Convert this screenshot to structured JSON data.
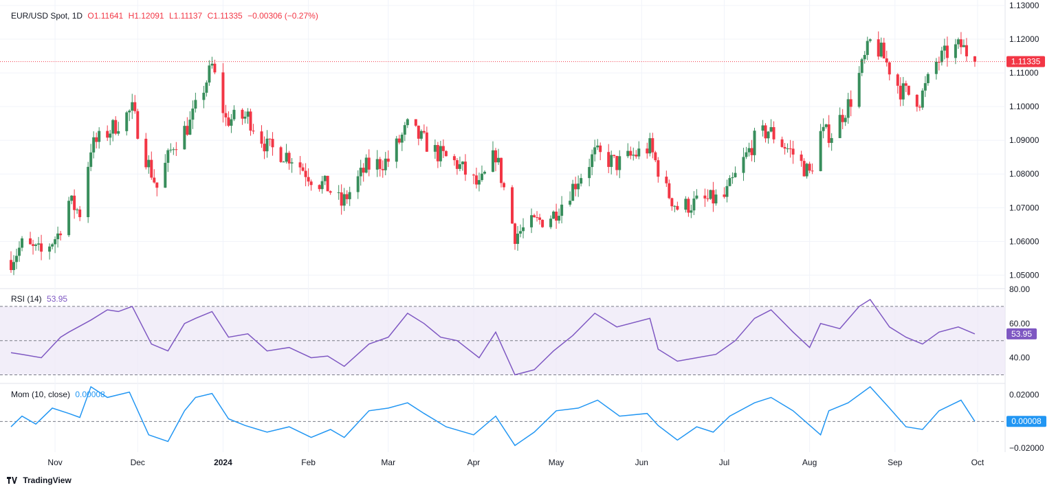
{
  "legend": {
    "symbol": "EUR/USD Spot, 1D",
    "open": "O1.11641",
    "high": "H1.12091",
    "low": "L1.11137",
    "close": "C1.11335",
    "change": "−0.00306 (−0.27%)"
  },
  "rsi_legend": {
    "label": "RSI (14)",
    "value": "53.95"
  },
  "mom_legend": {
    "label": "Mom (10, close)",
    "value": "0.00008"
  },
  "brand": "TradingView",
  "colors": {
    "up": "#26a69a",
    "up_candle": "#388e5c",
    "down": "#f23645",
    "rsi": "#7e57c2",
    "rsi_band": "#ede7f6",
    "mom": "#2196f3"
  },
  "chart_data": [
    {
      "type": "candlestick",
      "title": "EUR/USD Spot, 1D",
      "ylim": [
        1.046,
        1.13
      ],
      "y_ticks": [
        "1.13000",
        "1.12000",
        "1.11000",
        "1.10000",
        "1.09000",
        "1.08000",
        "1.07000",
        "1.06000",
        "1.05000"
      ],
      "last_price_label": "1.11335",
      "last_price": 1.11335,
      "x_ticks": [
        "Nov",
        "Dec",
        "2024",
        "Feb",
        "Mar",
        "Apr",
        "May",
        "Jun",
        "Jul",
        "Aug",
        "Sep",
        "Oct"
      ],
      "close_path": [
        [
          "2023-10-16",
          1.0545
        ],
        [
          "2023-10-20",
          1.059
        ],
        [
          "2023-10-27",
          1.0565
        ],
        [
          "2023-11-02",
          1.062
        ],
        [
          "2023-11-06",
          1.072
        ],
        [
          "2023-11-10",
          1.0685
        ],
        [
          "2023-11-14",
          1.088
        ],
        [
          "2023-11-21",
          1.093
        ],
        [
          "2023-11-29",
          1.099
        ],
        [
          "2023-12-04",
          1.085
        ],
        [
          "2023-12-08",
          1.076
        ],
        [
          "2023-12-14",
          1.089
        ],
        [
          "2023-12-20",
          1.095
        ],
        [
          "2023-12-28",
          1.112
        ],
        [
          "2024-01-02",
          1.096
        ],
        [
          "2024-01-10",
          1.097
        ],
        [
          "2024-01-17",
          1.088
        ],
        [
          "2024-01-26",
          1.085
        ],
        [
          "2024-02-02",
          1.079
        ],
        [
          "2024-02-08",
          1.076
        ],
        [
          "2024-02-13",
          1.071
        ],
        [
          "2024-02-22",
          1.082
        ],
        [
          "2024-03-01",
          1.084
        ],
        [
          "2024-03-08",
          1.094
        ],
        [
          "2024-03-19",
          1.086
        ],
        [
          "2024-03-26",
          1.083
        ],
        [
          "2024-04-03",
          1.076
        ],
        [
          "2024-04-09",
          1.086
        ],
        [
          "2024-04-16",
          1.062
        ],
        [
          "2024-04-22",
          1.065
        ],
        [
          "2024-04-30",
          1.068
        ],
        [
          "2024-05-06",
          1.075
        ],
        [
          "2024-05-15",
          1.086
        ],
        [
          "2024-05-23",
          1.083
        ],
        [
          "2024-06-04",
          1.088
        ],
        [
          "2024-06-10",
          1.075
        ],
        [
          "2024-06-14",
          1.07
        ],
        [
          "2024-06-24",
          1.072
        ],
        [
          "2024-07-01",
          1.073
        ],
        [
          "2024-07-12",
          1.09
        ],
        [
          "2024-07-17",
          1.093
        ],
        [
          "2024-07-26",
          1.086
        ],
        [
          "2024-08-01",
          1.08
        ],
        [
          "2024-08-05",
          1.092
        ],
        [
          "2024-08-09",
          1.092
        ],
        [
          "2024-08-16",
          1.102
        ],
        [
          "2024-08-23",
          1.119
        ],
        [
          "2024-08-27",
          1.116
        ],
        [
          "2024-09-03",
          1.105
        ],
        [
          "2024-09-10",
          1.102
        ],
        [
          "2024-09-16",
          1.113
        ],
        [
          "2024-09-20",
          1.116
        ],
        [
          "2024-09-25",
          1.118
        ],
        [
          "2024-09-30",
          1.11335
        ]
      ]
    },
    {
      "type": "line",
      "name": "RSI (14)",
      "last_value": 53.95,
      "ylim": [
        25,
        80
      ],
      "y_ticks": [
        "80.00",
        "60.00",
        "40.00"
      ],
      "bands": [
        30,
        50,
        70
      ],
      "values": [
        [
          "2023-10-16",
          43
        ],
        [
          "2023-10-20",
          42
        ],
        [
          "2023-10-27",
          40
        ],
        [
          "2023-11-03",
          52
        ],
        [
          "2023-11-06",
          55
        ],
        [
          "2023-11-14",
          62
        ],
        [
          "2023-11-20",
          68
        ],
        [
          "2023-11-24",
          67
        ],
        [
          "2023-11-29",
          70
        ],
        [
          "2023-12-06",
          48
        ],
        [
          "2023-12-12",
          44
        ],
        [
          "2023-12-18",
          60
        ],
        [
          "2023-12-22",
          63
        ],
        [
          "2023-12-28",
          67
        ],
        [
          "2024-01-03",
          52
        ],
        [
          "2024-01-10",
          54
        ],
        [
          "2024-01-17",
          44
        ],
        [
          "2024-01-25",
          46
        ],
        [
          "2024-02-02",
          40
        ],
        [
          "2024-02-08",
          41
        ],
        [
          "2024-02-14",
          35
        ],
        [
          "2024-02-23",
          48
        ],
        [
          "2024-03-01",
          52
        ],
        [
          "2024-03-08",
          66
        ],
        [
          "2024-03-14",
          60
        ],
        [
          "2024-03-20",
          52
        ],
        [
          "2024-03-26",
          50
        ],
        [
          "2024-04-03",
          40
        ],
        [
          "2024-04-09",
          55
        ],
        [
          "2024-04-16",
          30
        ],
        [
          "2024-04-23",
          33
        ],
        [
          "2024-04-30",
          44
        ],
        [
          "2024-05-07",
          53
        ],
        [
          "2024-05-15",
          66
        ],
        [
          "2024-05-23",
          58
        ],
        [
          "2024-06-04",
          63
        ],
        [
          "2024-06-07",
          45
        ],
        [
          "2024-06-14",
          38
        ],
        [
          "2024-06-21",
          40
        ],
        [
          "2024-06-28",
          42
        ],
        [
          "2024-07-05",
          50
        ],
        [
          "2024-07-12",
          63
        ],
        [
          "2024-07-18",
          68
        ],
        [
          "2024-07-26",
          55
        ],
        [
          "2024-08-01",
          46
        ],
        [
          "2024-08-05",
          60
        ],
        [
          "2024-08-12",
          57
        ],
        [
          "2024-08-19",
          70
        ],
        [
          "2024-08-23",
          74
        ],
        [
          "2024-08-30",
          58
        ],
        [
          "2024-09-05",
          52
        ],
        [
          "2024-09-11",
          48
        ],
        [
          "2024-09-17",
          55
        ],
        [
          "2024-09-24",
          58
        ],
        [
          "2024-09-30",
          53.95
        ]
      ]
    },
    {
      "type": "line",
      "name": "Mom (10, close)",
      "last_value": 8e-05,
      "ylim": [
        -0.023,
        0.028
      ],
      "y_ticks": [
        "0.02000",
        "−0.02000"
      ],
      "zero_line": 0,
      "last_value_label": "0.00008",
      "values": [
        [
          "2023-10-16",
          -0.004
        ],
        [
          "2023-10-20",
          0.004
        ],
        [
          "2023-10-25",
          -0.002
        ],
        [
          "2023-10-31",
          0.01
        ],
        [
          "2023-11-06",
          0.006
        ],
        [
          "2023-11-10",
          0.003
        ],
        [
          "2023-11-14",
          0.026
        ],
        [
          "2023-11-20",
          0.018
        ],
        [
          "2023-11-28",
          0.022
        ],
        [
          "2023-12-05",
          -0.01
        ],
        [
          "2023-12-12",
          -0.015
        ],
        [
          "2023-12-18",
          0.008
        ],
        [
          "2023-12-22",
          0.018
        ],
        [
          "2023-12-28",
          0.021
        ],
        [
          "2024-01-03",
          0.002
        ],
        [
          "2024-01-09",
          -0.003
        ],
        [
          "2024-01-17",
          -0.008
        ],
        [
          "2024-01-25",
          -0.004
        ],
        [
          "2024-02-02",
          -0.012
        ],
        [
          "2024-02-09",
          -0.006
        ],
        [
          "2024-02-14",
          -0.012
        ],
        [
          "2024-02-23",
          0.008
        ],
        [
          "2024-03-01",
          0.01
        ],
        [
          "2024-03-08",
          0.014
        ],
        [
          "2024-03-14",
          0.006
        ],
        [
          "2024-03-22",
          -0.004
        ],
        [
          "2024-04-01",
          -0.01
        ],
        [
          "2024-04-09",
          0.004
        ],
        [
          "2024-04-16",
          -0.018
        ],
        [
          "2024-04-23",
          -0.008
        ],
        [
          "2024-05-01",
          0.008
        ],
        [
          "2024-05-09",
          0.01
        ],
        [
          "2024-05-16",
          0.016
        ],
        [
          "2024-05-24",
          0.004
        ],
        [
          "2024-06-03",
          0.006
        ],
        [
          "2024-06-07",
          -0.003
        ],
        [
          "2024-06-14",
          -0.014
        ],
        [
          "2024-06-21",
          -0.004
        ],
        [
          "2024-06-27",
          -0.008
        ],
        [
          "2024-07-03",
          0.004
        ],
        [
          "2024-07-12",
          0.014
        ],
        [
          "2024-07-18",
          0.018
        ],
        [
          "2024-07-26",
          0.008
        ],
        [
          "2024-08-05",
          -0.01
        ],
        [
          "2024-08-08",
          0.008
        ],
        [
          "2024-08-15",
          0.014
        ],
        [
          "2024-08-23",
          0.026
        ],
        [
          "2024-08-30",
          0.01
        ],
        [
          "2024-09-05",
          -0.004
        ],
        [
          "2024-09-11",
          -0.006
        ],
        [
          "2024-09-17",
          0.008
        ],
        [
          "2024-09-25",
          0.016
        ],
        [
          "2024-09-30",
          8e-05
        ]
      ]
    }
  ]
}
